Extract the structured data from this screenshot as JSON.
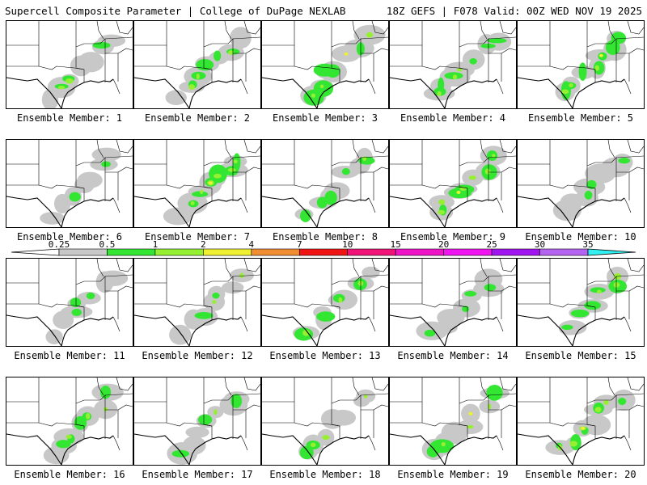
{
  "header": {
    "left": "Supercell Composite Parameter | College of DuPage NEXLAB",
    "right": "18Z GEFS | F078 Valid: 00Z WED NOV 19 2025"
  },
  "legend": {
    "ticks": [
      "0.25",
      "0.5",
      "1",
      "2",
      "4",
      "7",
      "10",
      "15",
      "20",
      "25",
      "30",
      "35"
    ],
    "colors": [
      "#c8c8c8",
      "#32e632",
      "#96f032",
      "#f0f032",
      "#f08c32",
      "#f01414",
      "#f01478",
      "#f014c8",
      "#f014f0",
      "#a014f0",
      "#b464f0",
      "#32f0f0"
    ]
  },
  "members": [
    {
      "label": "Ensemble Member: 1",
      "intensity": 2
    },
    {
      "label": "Ensemble Member: 2",
      "intensity": 2
    },
    {
      "label": "Ensemble Member: 3",
      "intensity": 3
    },
    {
      "label": "Ensemble Member: 4",
      "intensity": 2
    },
    {
      "label": "Ensemble Member: 5",
      "intensity": 3
    },
    {
      "label": "Ensemble Member: 6",
      "intensity": 1
    },
    {
      "label": "Ensemble Member: 7",
      "intensity": 3
    },
    {
      "label": "Ensemble Member: 8",
      "intensity": 2
    },
    {
      "label": "Ensemble Member: 9",
      "intensity": 3
    },
    {
      "label": "Ensemble Member: 10",
      "intensity": 1
    },
    {
      "label": "Ensemble Member: 11",
      "intensity": 1
    },
    {
      "label": "Ensemble Member: 12",
      "intensity": 2
    },
    {
      "label": "Ensemble Member: 13",
      "intensity": 2
    },
    {
      "label": "Ensemble Member: 14",
      "intensity": 1
    },
    {
      "label": "Ensemble Member: 15",
      "intensity": 2
    },
    {
      "label": "Ensemble Member: 16",
      "intensity": 2
    },
    {
      "label": "Ensemble Member: 17",
      "intensity": 2
    },
    {
      "label": "Ensemble Member: 18",
      "intensity": 2
    },
    {
      "label": "Ensemble Member: 19",
      "intensity": 3
    },
    {
      "label": "Ensemble Member: 20",
      "intensity": 3
    }
  ]
}
